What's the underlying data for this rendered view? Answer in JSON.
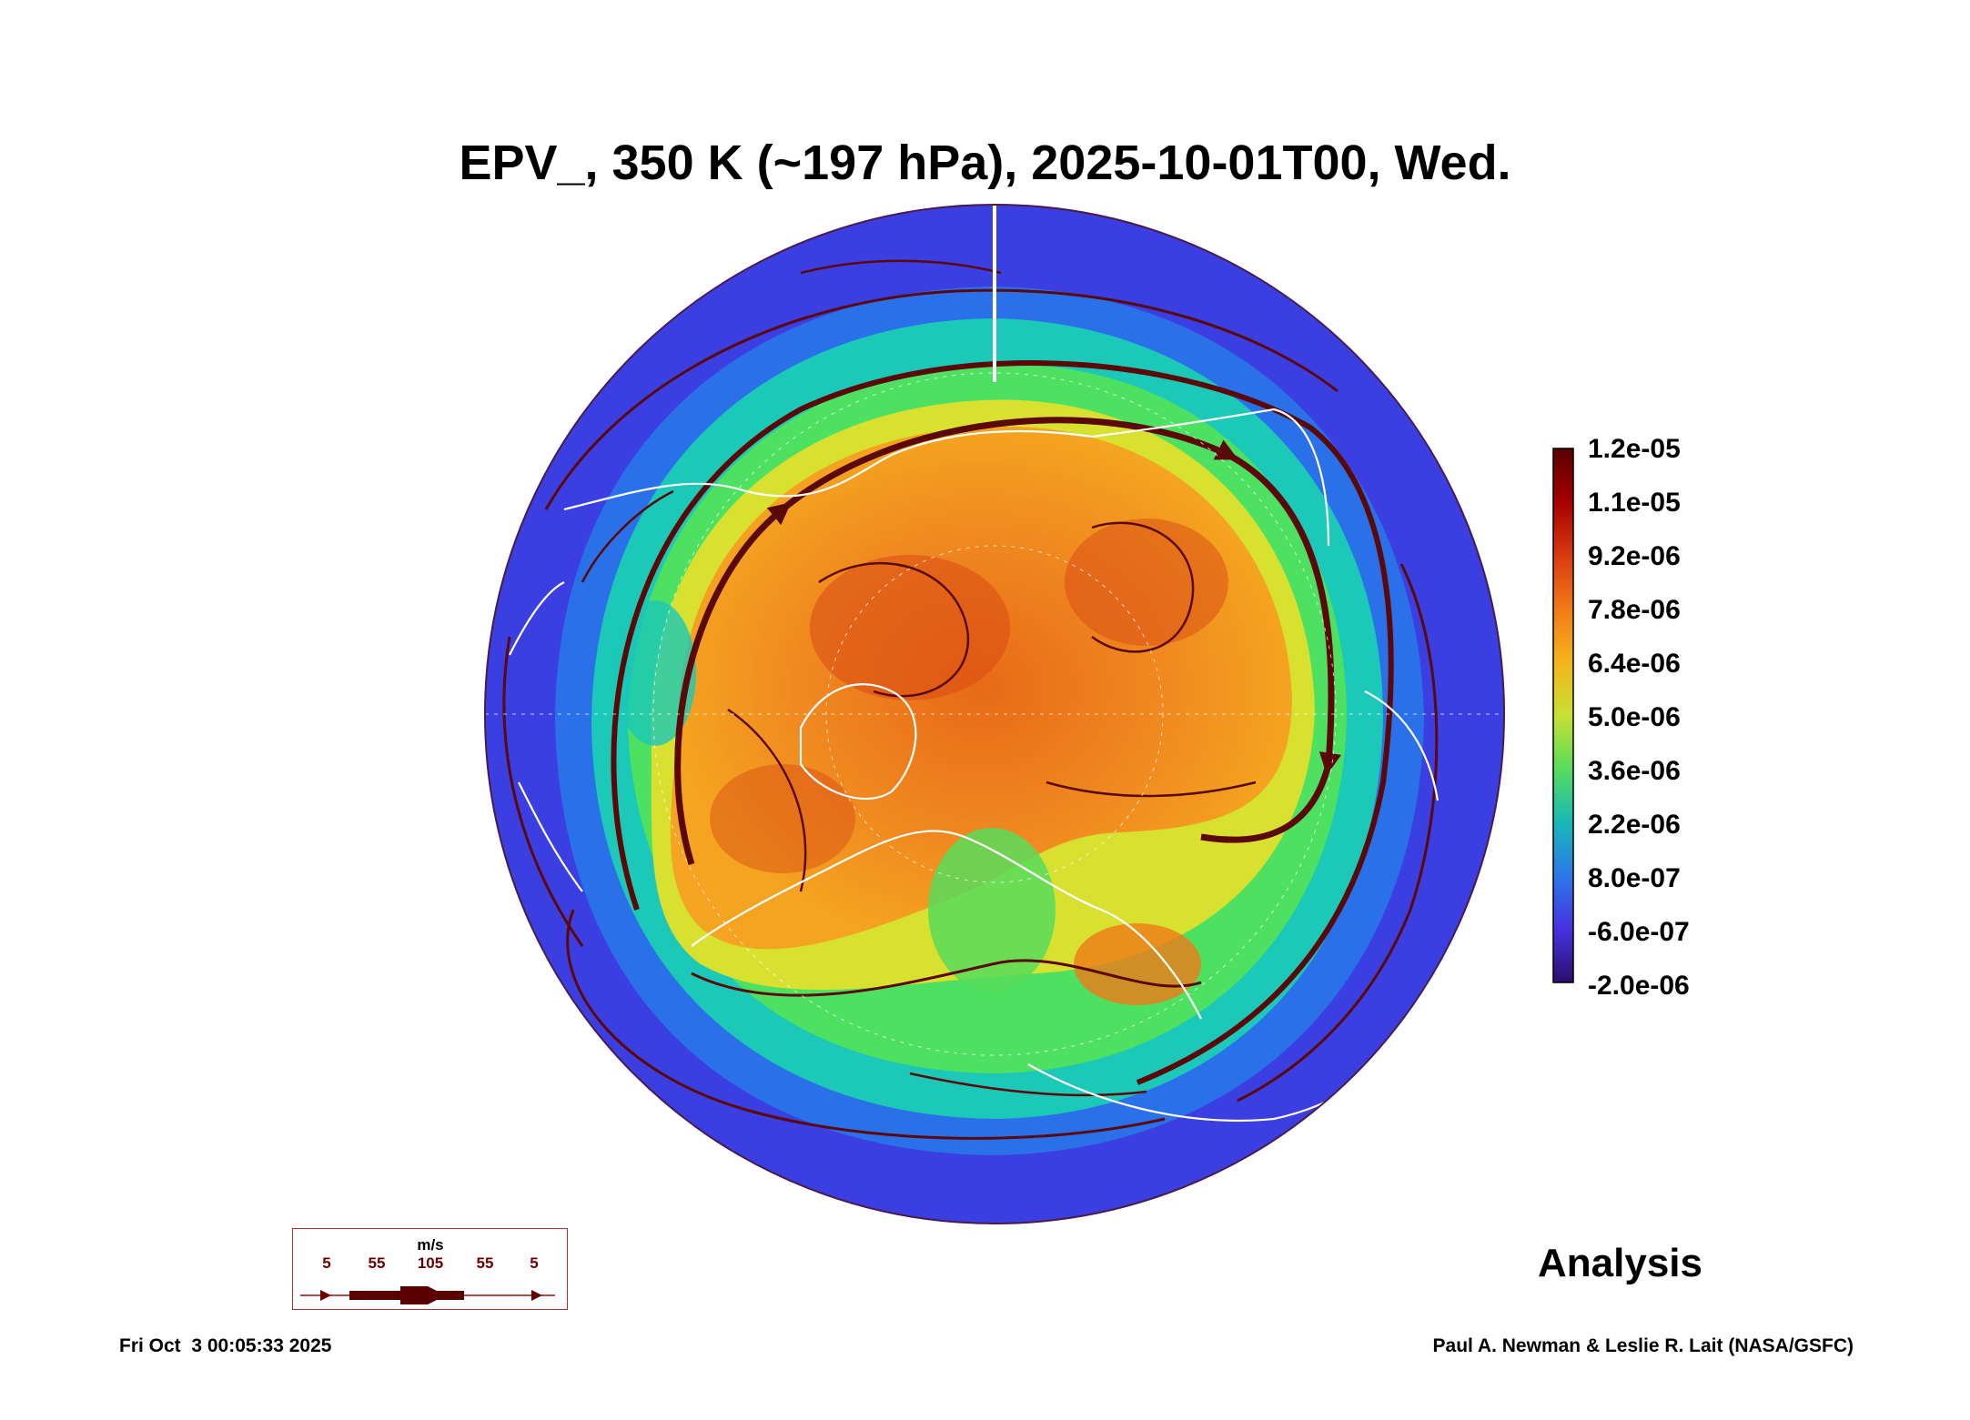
{
  "title": "EPV_, 350 K (~197 hPa), 2025-10-01T00, Wed.",
  "colorbar": {
    "labels": [
      "1.2e-05",
      "1.1e-05",
      "9.2e-06",
      "7.8e-06",
      "6.4e-06",
      "5.0e-06",
      "3.6e-06",
      "2.2e-06",
      "8.0e-07",
      "-6.0e-07",
      "-2.0e-06"
    ],
    "colors": [
      "#5a0000",
      "#a40000",
      "#d83a10",
      "#f07a18",
      "#f4b41c",
      "#c8e034",
      "#58dc5c",
      "#18b8b8",
      "#2c78e8",
      "#4632e0",
      "#2c0c6c"
    ]
  },
  "map": {
    "projection": "north-polar-stereographic",
    "colors": {
      "outer_ring": "#3b3ee0",
      "blue_ring": "#2a70e8",
      "cyan_ring": "#1cc8b8",
      "green_ring": "#4ee060",
      "yellow_ring": "#d8e030",
      "core": "#f08020",
      "core_hot": "#d84a14",
      "streamline": "#5a0808",
      "coastline": "#ffffff"
    }
  },
  "wind_legend": {
    "unit": "m/s",
    "ticks": [
      "5",
      "55",
      "105",
      "55",
      "5"
    ]
  },
  "analysis_label": "Analysis",
  "timestamp": "Fri Oct  3 00:05:33 2025",
  "credit": "Paul A. Newman & Leslie R. Lait (NASA/GSFC)"
}
